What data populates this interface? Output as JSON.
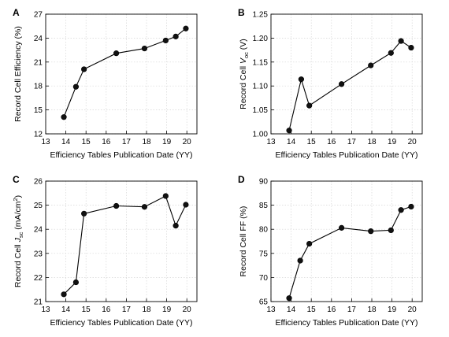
{
  "chart_data": [
    {
      "panel": "A",
      "type": "line",
      "xlabel": "Efficiency Tables Publication Date (YY)",
      "ylabel": "Record Cell Efficiency (%)",
      "xlim": [
        13,
        20.5
      ],
      "ylim": [
        12,
        27
      ],
      "xticks": [
        13,
        14,
        15,
        16,
        17,
        18,
        19,
        20
      ],
      "yticks": [
        12,
        15,
        18,
        21,
        24,
        27
      ],
      "grid": true,
      "x": [
        13.9,
        14.5,
        14.9,
        16.5,
        17.9,
        18.95,
        19.45,
        19.95
      ],
      "y": [
        14.1,
        17.9,
        20.1,
        22.1,
        22.7,
        23.7,
        24.2,
        25.2
      ]
    },
    {
      "panel": "B",
      "type": "line",
      "xlabel": "Efficiency Tables Publication Date (YY)",
      "ylabel": "Record Cell V_oc (V)",
      "ylabel_parts": [
        "Record Cell ",
        "V",
        "oc",
        " (V)"
      ],
      "xlim": [
        13,
        20.5
      ],
      "ylim": [
        1.0,
        1.25
      ],
      "xticks": [
        13,
        14,
        15,
        16,
        17,
        18,
        19,
        20
      ],
      "yticks": [
        "1.00",
        "1.05",
        "1.10",
        "1.15",
        "1.20",
        "1.25"
      ],
      "grid": true,
      "x": [
        13.9,
        14.5,
        14.9,
        16.5,
        17.95,
        18.95,
        19.45,
        19.95
      ],
      "y": [
        1.007,
        1.114,
        1.059,
        1.104,
        1.143,
        1.169,
        1.194,
        1.18
      ]
    },
    {
      "panel": "C",
      "type": "line",
      "xlabel": "Efficiency Tables Publication Date (YY)",
      "ylabel": "Record Cell J_sc (mA/cm^2)",
      "ylabel_parts": [
        "Record Cell ",
        "J",
        "sc",
        " (mA/cm",
        "2",
        ")"
      ],
      "xlim": [
        13,
        20.5
      ],
      "ylim": [
        21,
        26
      ],
      "xticks": [
        13,
        14,
        15,
        16,
        17,
        18,
        19,
        20
      ],
      "yticks": [
        21,
        22,
        23,
        24,
        25,
        26
      ],
      "grid": true,
      "x": [
        13.9,
        14.5,
        14.9,
        16.5,
        17.9,
        18.95,
        19.45,
        19.95
      ],
      "y": [
        21.3,
        21.8,
        24.65,
        24.97,
        24.93,
        25.38,
        24.15,
        25.02
      ]
    },
    {
      "panel": "D",
      "type": "line",
      "xlabel": "Efficiency Tables Publication Date (YY)",
      "ylabel": "Record Cell FF (%)",
      "xlim": [
        13,
        20.5
      ],
      "ylim": [
        65,
        90
      ],
      "xticks": [
        13,
        14,
        15,
        16,
        17,
        18,
        19,
        20
      ],
      "yticks": [
        65,
        70,
        75,
        80,
        85,
        90
      ],
      "grid": true,
      "x": [
        13.9,
        14.45,
        14.9,
        16.5,
        17.95,
        18.95,
        19.45,
        19.95
      ],
      "y": [
        65.7,
        73.5,
        77.0,
        80.3,
        79.6,
        79.8,
        84.0,
        84.7
      ]
    }
  ]
}
